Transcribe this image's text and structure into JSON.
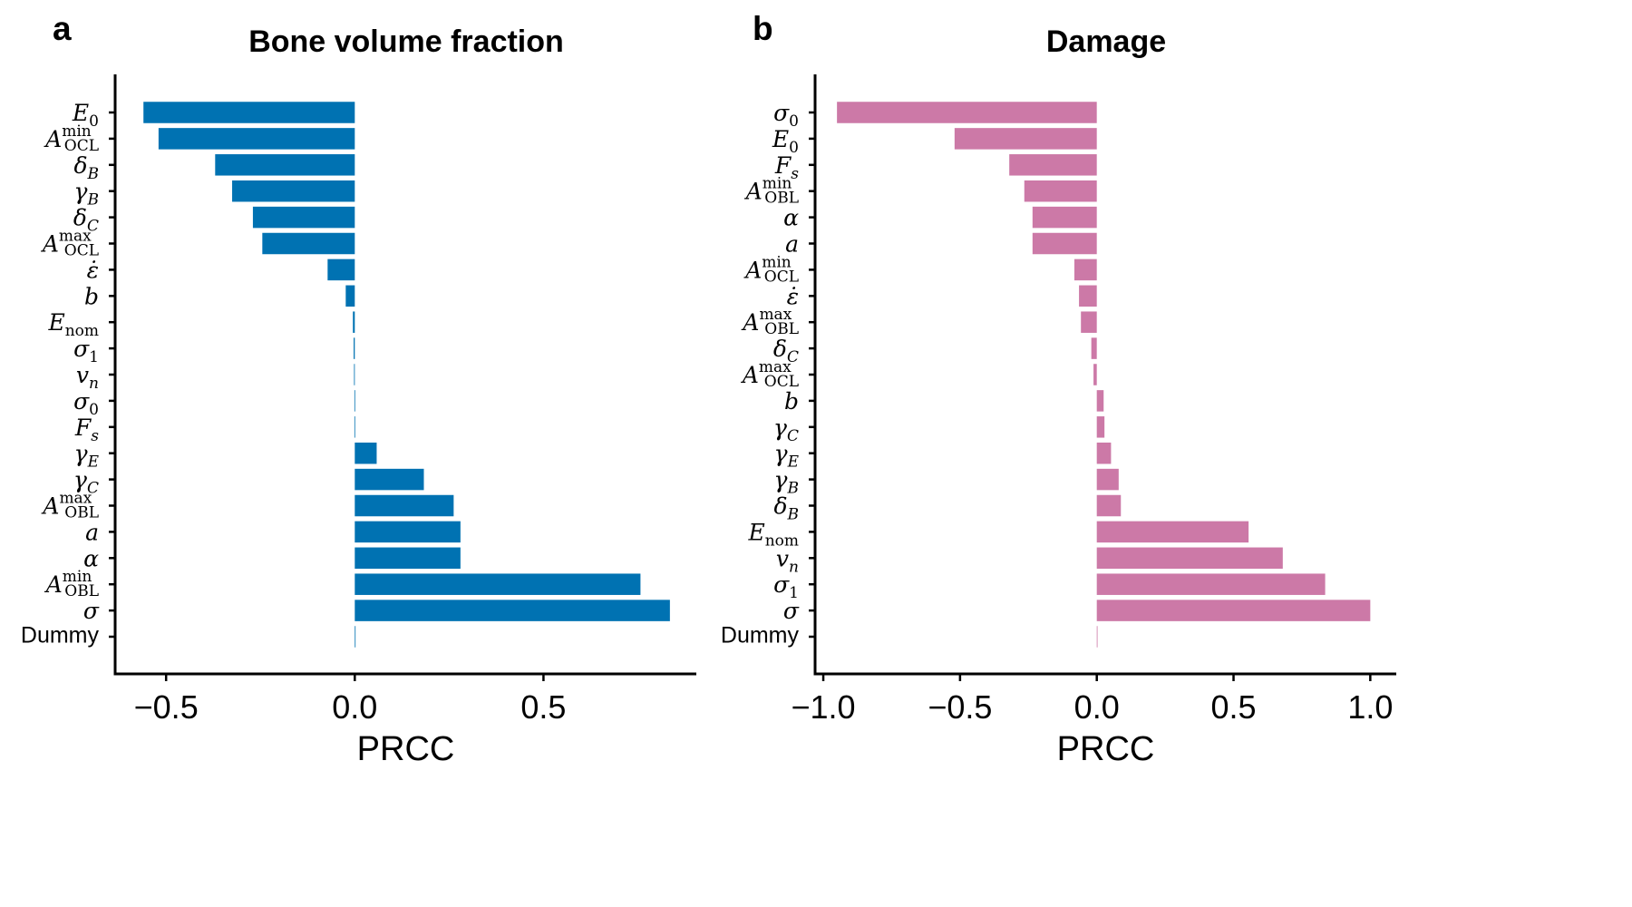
{
  "chart_data": [
    {
      "panel": "a",
      "type": "bar",
      "orientation": "horizontal",
      "title": "Bone volume fraction",
      "xlabel": "PRCC",
      "ylabel": "",
      "xlim": [
        -0.635,
        0.905
      ],
      "xticks": [
        -0.5,
        0.0,
        0.5
      ],
      "xtick_labels": [
        "−0.5",
        "0.0",
        "0.5"
      ],
      "color": "#0072b2",
      "grid": false,
      "categories": [
        {
          "key": "E0",
          "value": -0.56
        },
        {
          "key": "AminOCL",
          "value": -0.52
        },
        {
          "key": "deltaB",
          "value": -0.37
        },
        {
          "key": "gammaB",
          "value": -0.325
        },
        {
          "key": "deltaC",
          "value": -0.27
        },
        {
          "key": "AmaxOCL",
          "value": -0.245
        },
        {
          "key": "epsdot",
          "value": -0.072
        },
        {
          "key": "b",
          "value": -0.024
        },
        {
          "key": "Enom",
          "value": -0.005
        },
        {
          "key": "sigma1",
          "value": -0.003
        },
        {
          "key": "vn",
          "value": -0.002
        },
        {
          "key": "sigma0",
          "value": -0.001
        },
        {
          "key": "Fs",
          "value": -0.001
        },
        {
          "key": "gammaE",
          "value": 0.058
        },
        {
          "key": "gammaC",
          "value": 0.183
        },
        {
          "key": "AmaxOBL",
          "value": 0.262
        },
        {
          "key": "a",
          "value": 0.28
        },
        {
          "key": "alpha",
          "value": 0.28
        },
        {
          "key": "AminOBL",
          "value": 0.757
        },
        {
          "key": "sigma",
          "value": 0.835
        },
        {
          "key": "Dummy",
          "value": 0.002
        }
      ]
    },
    {
      "panel": "b",
      "type": "bar",
      "orientation": "horizontal",
      "title": "Damage",
      "xlabel": "PRCC",
      "ylabel": "",
      "xlim": [
        -1.03,
        1.095
      ],
      "xticks": [
        -1.0,
        -0.5,
        0.0,
        0.5,
        1.0
      ],
      "xtick_labels": [
        "−1.0",
        "−0.5",
        "0.0",
        "0.5",
        "1.0"
      ],
      "color": "#cc79a7",
      "grid": false,
      "categories": [
        {
          "key": "sigma0",
          "value": -0.95
        },
        {
          "key": "E0",
          "value": -0.52
        },
        {
          "key": "Fs",
          "value": -0.32
        },
        {
          "key": "AminOBL",
          "value": -0.265
        },
        {
          "key": "alpha",
          "value": -0.235
        },
        {
          "key": "a",
          "value": -0.235
        },
        {
          "key": "AminOCL",
          "value": -0.082
        },
        {
          "key": "epsdot",
          "value": -0.065
        },
        {
          "key": "AmaxOBL",
          "value": -0.058
        },
        {
          "key": "deltaC",
          "value": -0.02
        },
        {
          "key": "AmaxOCL",
          "value": -0.012
        },
        {
          "key": "b",
          "value": 0.025
        },
        {
          "key": "gammaC",
          "value": 0.028
        },
        {
          "key": "gammaE",
          "value": 0.052
        },
        {
          "key": "gammaB",
          "value": 0.08
        },
        {
          "key": "deltaB",
          "value": 0.088
        },
        {
          "key": "Enom",
          "value": 0.555
        },
        {
          "key": "vn",
          "value": 0.68
        },
        {
          "key": "sigma1",
          "value": 0.835
        },
        {
          "key": "sigma",
          "value": 1.0
        },
        {
          "key": "Dummy",
          "value": 0.0
        }
      ]
    }
  ]
}
